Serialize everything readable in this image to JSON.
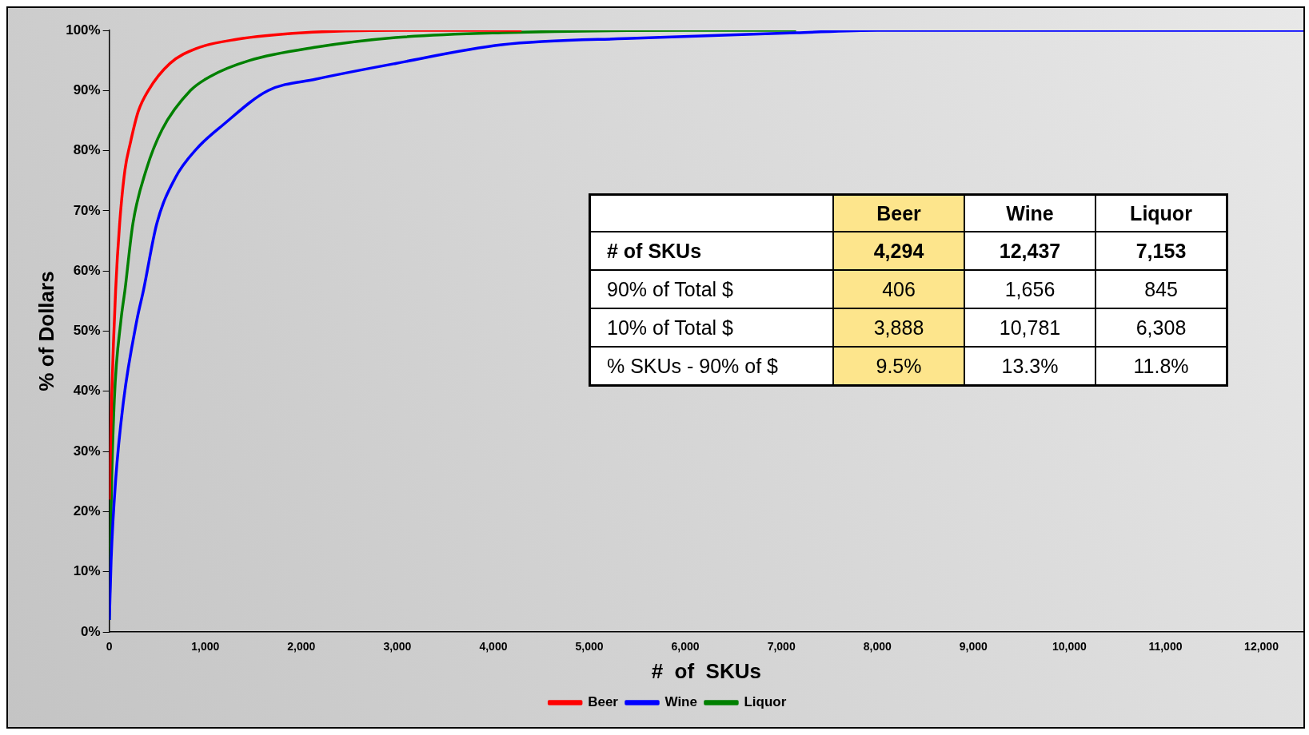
{
  "chart_data": {
    "type": "line",
    "xlabel": "#  of  SKUs",
    "ylabel": "% of Dollars",
    "xlim": [
      0,
      12437
    ],
    "ylim": [
      0,
      100
    ],
    "xticks": [
      {
        "value": 0,
        "label": "0"
      },
      {
        "value": 1000,
        "label": "1,000"
      },
      {
        "value": 2000,
        "label": "2,000"
      },
      {
        "value": 3000,
        "label": "3,000"
      },
      {
        "value": 4000,
        "label": "4,000"
      },
      {
        "value": 5000,
        "label": "5,000"
      },
      {
        "value": 6000,
        "label": "6,000"
      },
      {
        "value": 7000,
        "label": "7,000"
      },
      {
        "value": 8000,
        "label": "8,000"
      },
      {
        "value": 9000,
        "label": "9,000"
      },
      {
        "value": 10000,
        "label": "10,000"
      },
      {
        "value": 11000,
        "label": "11,000"
      },
      {
        "value": 12000,
        "label": "12,000"
      }
    ],
    "yticks": [
      {
        "value": 0,
        "label": "0%"
      },
      {
        "value": 10,
        "label": "10%"
      },
      {
        "value": 20,
        "label": "20%"
      },
      {
        "value": 30,
        "label": "30%"
      },
      {
        "value": 40,
        "label": "40%"
      },
      {
        "value": 50,
        "label": "50%"
      },
      {
        "value": 60,
        "label": "60%"
      },
      {
        "value": 70,
        "label": "70%"
      },
      {
        "value": 80,
        "label": "80%"
      },
      {
        "value": 90,
        "label": "90%"
      },
      {
        "value": 100,
        "label": "100%"
      }
    ],
    "grid": false,
    "legend": "bottom",
    "marker": "none",
    "line_style": "solid",
    "series": [
      {
        "name": "Beer",
        "color": "#ff0000",
        "x": [
          1,
          25,
          66,
          108,
          163,
          218,
          301,
          406,
          632,
          909,
          1324,
          2015,
          3000,
          4294
        ],
        "values": [
          22,
          39,
          56.8,
          67.9,
          76.8,
          81.2,
          86.5,
          90,
          94.5,
          97,
          98.5,
          99.6,
          100,
          100
        ]
      },
      {
        "name": "Wine",
        "color": "#0000ff",
        "x": [
          1,
          19,
          66,
          149,
          288,
          356,
          495,
          688,
          909,
          1185,
          1656,
          2153,
          2982,
          4087,
          5496,
          7154,
          8000,
          12437
        ],
        "values": [
          2,
          11.9,
          25.2,
          38.5,
          51.9,
          56.8,
          67.9,
          75.5,
          80.3,
          84.3,
          90,
          91.9,
          94.5,
          97.6,
          98.7,
          99.6,
          100,
          100
        ]
      },
      {
        "name": "Liquor",
        "color": "#008000",
        "x": [
          1,
          19,
          52,
          122,
          163,
          246,
          384,
          550,
          845,
          1047,
          1462,
          2153,
          2982,
          4087,
          6000,
          7153
        ],
        "values": [
          2,
          20.8,
          38.5,
          51.9,
          56.8,
          67.9,
          76.8,
          83.5,
          90,
          92.3,
          95,
          97.2,
          98.8,
          99.6,
          100,
          100
        ]
      }
    ],
    "annotations": [
      "Beer",
      "Wine",
      "Liquor",
      "# of SKUs",
      "4,294",
      "12,437",
      "7,153",
      "90% of Total $",
      "406",
      "1,656",
      "845",
      "10% of Total $",
      "3,888",
      "10,781",
      "6,308",
      "% SKUs - 90% of $",
      "9.5%",
      "13.3%",
      "11.8%"
    ]
  }
}
